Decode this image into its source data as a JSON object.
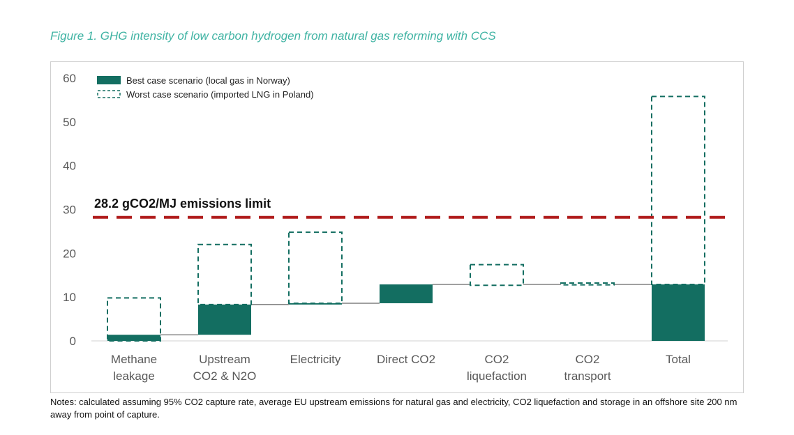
{
  "figure": {
    "title": "Figure 1. GHG intensity of low carbon hydrogen from natural gas reforming with CCS",
    "notes": "Notes: calculated assuming 95% CO2 capture rate, average EU upstream emissions for natural gas and electricity, CO2 liquefaction and storage in an offshore site 200 nm away from point of capture."
  },
  "colors": {
    "best": "#136e61",
    "worst_border": "#136e61",
    "limit": "#b01c1c",
    "axis_text": "#595959",
    "connector": "#404040"
  },
  "chart_data": {
    "type": "bar",
    "subtype": "waterfall",
    "title": "",
    "xlabel": "",
    "ylabel": "",
    "ylim": [
      0,
      60
    ],
    "yticks": [
      0,
      10,
      20,
      30,
      40,
      50,
      60
    ],
    "grid": false,
    "legend_position": "top-left",
    "categories": [
      [
        "Methane",
        "leakage"
      ],
      [
        "Upstream",
        "CO2 & N2O"
      ],
      [
        "Electricity"
      ],
      [
        "Direct CO2"
      ],
      [
        "CO2",
        "liquefaction"
      ],
      [
        "CO2",
        "transport"
      ],
      [
        "Total"
      ]
    ],
    "series": [
      {
        "name": "Best case scenario (local gas in Norway)",
        "style": "solid",
        "bars": [
          {
            "base": 0,
            "top": 1.4
          },
          {
            "base": 1.4,
            "top": 8.3
          },
          {
            "base": 8.3,
            "top": 8.6
          },
          {
            "base": 8.6,
            "top": 12.9
          },
          {
            "base": 12.9,
            "top": 12.9
          },
          {
            "base": 12.9,
            "top": 12.9
          },
          {
            "base": 0,
            "top": 12.9
          }
        ]
      },
      {
        "name": "Worst case scenario (imported LNG in Poland)",
        "style": "dashed",
        "bars": [
          {
            "base": 0,
            "top": 9.8
          },
          {
            "base": 8.3,
            "top": 22.0
          },
          {
            "base": 8.6,
            "top": 24.8
          },
          null,
          {
            "base": 12.7,
            "top": 17.4
          },
          {
            "base": 12.8,
            "top": 13.2
          },
          {
            "base": 12.9,
            "top": 55.8
          }
        ]
      }
    ],
    "connectors": [
      1.4,
      8.3,
      8.6,
      12.9,
      12.9,
      12.9
    ],
    "reference_line": {
      "value": 28.2,
      "label": "28.2 gCO2/MJ emissions limit"
    }
  }
}
